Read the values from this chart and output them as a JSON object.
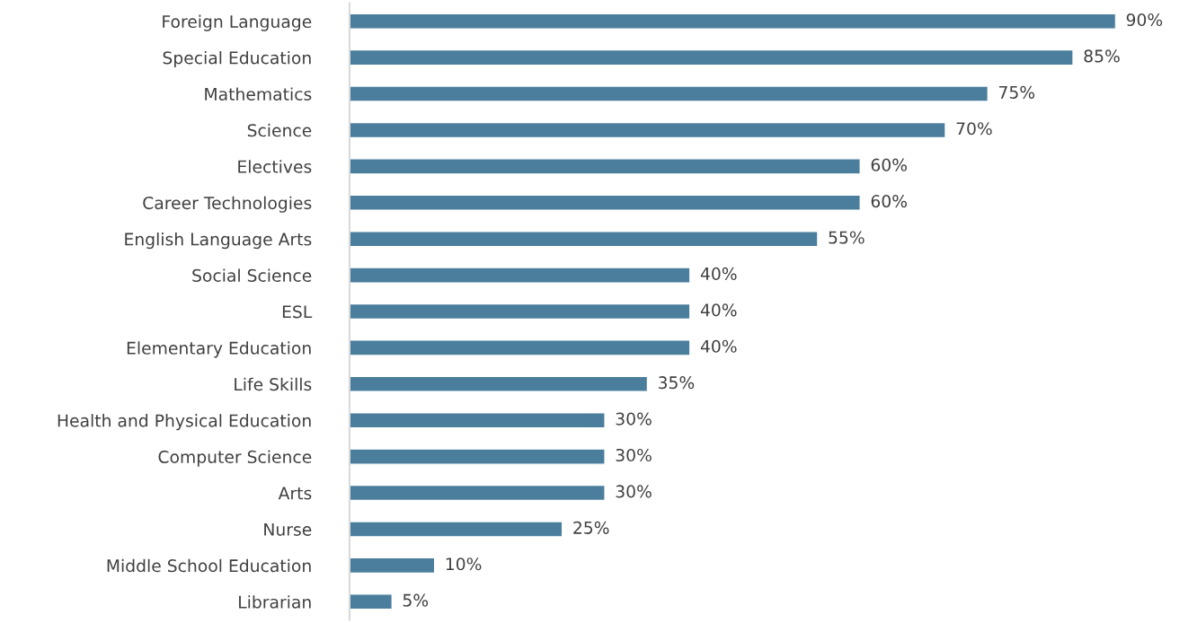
{
  "chart_data": {
    "type": "bar",
    "orientation": "horizontal",
    "tick_labels": "y",
    "color": "#4a7e9c",
    "categories": [
      "Foreign Language",
      "Special Education",
      "Mathematics",
      "Science",
      "Electives",
      "Career Technologies",
      "English Language Arts",
      "Social Science",
      "ESL",
      "Elementary Education",
      "Life Skills",
      "Health and Physical Education",
      "Computer Science",
      "Arts",
      "Nurse",
      "Middle School Education",
      "Librarian"
    ],
    "values": [
      90,
      85,
      75,
      70,
      60,
      60,
      55,
      40,
      40,
      40,
      35,
      30,
      30,
      30,
      25,
      10,
      5
    ],
    "value_labels": [
      "90%",
      "85%",
      "75%",
      "70%",
      "60%",
      "60%",
      "55%",
      "40%",
      "40%",
      "40%",
      "35%",
      "30%",
      "30%",
      "30%",
      "25%",
      "10%",
      "5%"
    ]
  }
}
